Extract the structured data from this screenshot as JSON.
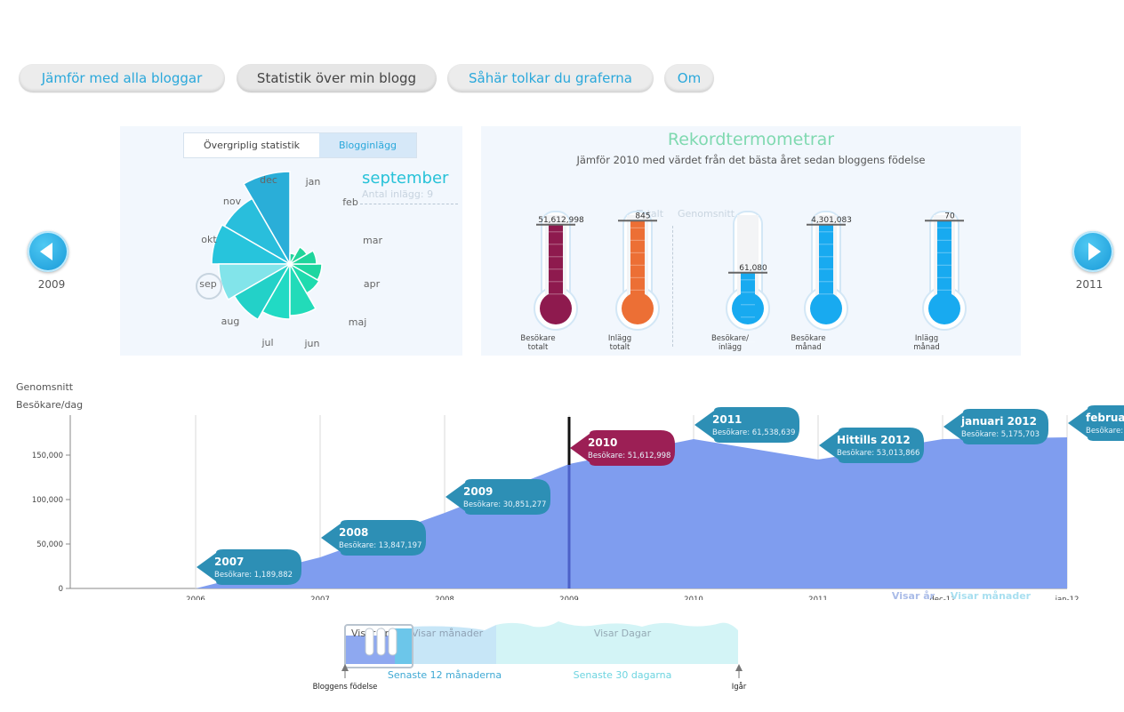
{
  "tabs": [
    {
      "label": "Jämför med alla bloggar"
    },
    {
      "label": "Statistik över min blogg"
    },
    {
      "label": "Såhär tolkar du graferna"
    },
    {
      "label": "Om"
    }
  ],
  "year_nav": {
    "prev_label": "2009",
    "next_label": "2011"
  },
  "left_panel": {
    "tab_overall": "Övergriplig statistik",
    "tab_posts": "Blogginlägg",
    "selected_month": "september",
    "selected_detail": "Antal inlägg: 9",
    "months": [
      "jan",
      "feb",
      "mar",
      "apr",
      "maj",
      "jun",
      "jul",
      "aug",
      "sep",
      "okt",
      "nov",
      "dec"
    ]
  },
  "record_panel": {
    "title": "Rekordtermometrar",
    "subtitle": "Jämför 2010 med värdet från det bästa året sedan bloggens födelse",
    "col_total": "Totalt",
    "col_average": "Genomsnitt",
    "thermometers": [
      {
        "value": "51,612,998",
        "label1": "Besökare",
        "label2": "totalt",
        "color": "#8e1a4e",
        "fill": 0.88
      },
      {
        "value": "845",
        "label1": "Inlägg",
        "label2": "totalt",
        "color": "#ec6f35",
        "fill": 0.93
      },
      {
        "value": "61,080",
        "label1": "Besökare/",
        "label2": "inlägg",
        "color": "#18aaf0",
        "fill": 0.28
      },
      {
        "value": "4,301,083",
        "label1": "Besökare",
        "label2": "månad",
        "color": "#18aaf0",
        "fill": 0.88
      },
      {
        "value": "70",
        "label1": "Inlägg",
        "label2": "månad",
        "color": "#18aaf0",
        "fill": 0.93
      }
    ]
  },
  "main_chart": {
    "ylabel_1": "Genomsnitt",
    "ylabel_2": "Besökare/dag",
    "yticks": [
      "0",
      "50,000",
      "100,000",
      "150,000"
    ],
    "xticks": [
      "2006",
      "2007",
      "2008",
      "2009",
      "2010",
      "2011",
      "dec-11",
      "jan-12"
    ],
    "visar_ar": "Visar år",
    "visar_manader": "Visar månader",
    "bubbles": [
      {
        "title": "2007",
        "sub": "Besökare: 1,189,882",
        "color": "#2d8fb5"
      },
      {
        "title": "2008",
        "sub": "Besökare: 13,847,197",
        "color": "#2d8fb5"
      },
      {
        "title": "2009",
        "sub": "Besökare: 30,851,277",
        "color": "#2d8fb5"
      },
      {
        "title": "2010",
        "sub": "Besökare: 51,612,998",
        "color": "#9c1f55"
      },
      {
        "title": "2011",
        "sub": "Besökare: 61,538,639",
        "color": "#2d8fb5"
      },
      {
        "title": "Hittills 2012",
        "sub": "Besökare: 53,013,866",
        "color": "#2d8fb5"
      },
      {
        "title": "januari 2012",
        "sub": "Besökare: 5,175,703",
        "color": "#2d8fb5"
      },
      {
        "title": "februari",
        "sub": "Besökare:",
        "color": "#2d8fb5"
      }
    ]
  },
  "chart_data": {
    "type": "area",
    "xlabel": "",
    "ylabel": "Genomsnitt Besökare/dag",
    "x": [
      "2006",
      "2007",
      "2008",
      "2009",
      "2010",
      "2011",
      "dec-11",
      "jan-12"
    ],
    "values": [
      0,
      35000,
      85000,
      140000,
      168000,
      145000,
      168000,
      170000
    ],
    "ylim": [
      0,
      190000
    ]
  },
  "timeline": {
    "visar_ar": "Visar år",
    "visar_manader": "Visar månader",
    "visar_dagar": "Visar Dagar",
    "senaste_12": "Senaste 12 månaderna",
    "senaste_30": "Senaste 30 dagarna",
    "birth": "Bloggens födelse",
    "yesterday": "Igår"
  }
}
